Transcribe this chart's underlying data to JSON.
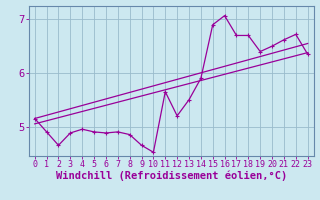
{
  "xlabel": "Windchill (Refroidissement éolien,°C)",
  "bg_color": "#cce8f0",
  "line_color": "#990099",
  "grid_color": "#99bbcc",
  "axis_color": "#6688aa",
  "xlim": [
    -0.5,
    23.5
  ],
  "ylim": [
    4.45,
    7.25
  ],
  "yticks": [
    5,
    6,
    7
  ],
  "xticks": [
    0,
    1,
    2,
    3,
    4,
    5,
    6,
    7,
    8,
    9,
    10,
    11,
    12,
    13,
    14,
    15,
    16,
    17,
    18,
    19,
    20,
    21,
    22,
    23
  ],
  "series1_x": [
    0,
    1,
    2,
    3,
    4,
    5,
    6,
    7,
    8,
    9,
    10,
    11,
    12,
    13,
    14,
    15,
    16,
    17,
    18,
    19,
    20,
    21,
    22,
    23
  ],
  "series1_y": [
    5.15,
    4.9,
    4.65,
    4.88,
    4.95,
    4.9,
    4.88,
    4.9,
    4.85,
    4.65,
    4.52,
    5.65,
    5.2,
    5.5,
    5.9,
    6.9,
    7.07,
    6.7,
    6.7,
    6.4,
    6.5,
    6.62,
    6.72,
    6.35
  ],
  "series2_x": [
    0,
    23
  ],
  "series2_y": [
    5.05,
    6.38
  ],
  "series3_x": [
    0,
    23
  ],
  "series3_y": [
    5.15,
    6.55
  ],
  "tick_fontsize": 6.0,
  "xlabel_fontsize": 7.5
}
